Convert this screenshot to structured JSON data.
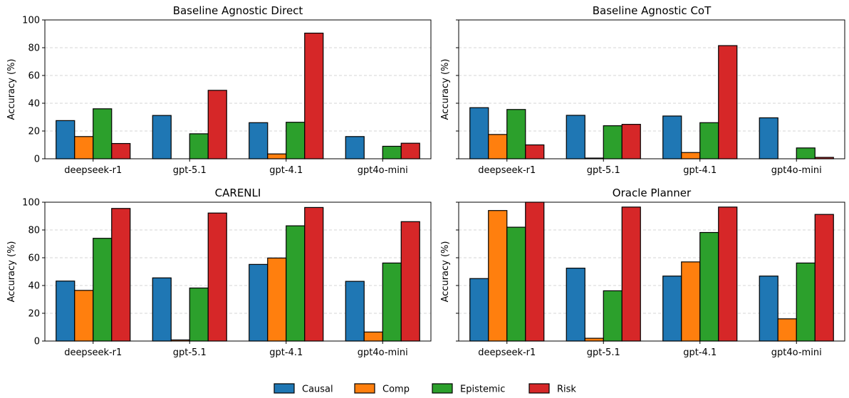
{
  "chart_data": [
    {
      "type": "bar",
      "title": "Baseline Agnostic Direct",
      "ylabel": "Accuracy (%)",
      "xlabel": "",
      "ylim": [
        0,
        100
      ],
      "yticks": [
        "0",
        "20",
        "40",
        "60",
        "80",
        "100"
      ],
      "show_ytick_labels": true,
      "grid": "y-dashed",
      "categories": [
        "deepseek-r1",
        "gpt-5.1",
        "gpt-4.1",
        "gpt4o-mini"
      ],
      "series": [
        {
          "name": "Causal",
          "values": [
            27.5,
            31.2,
            26.0,
            16.0
          ]
        },
        {
          "name": "Comp",
          "values": [
            16.0,
            0,
            3.5,
            0
          ]
        },
        {
          "name": "Epistemic",
          "values": [
            36.0,
            18.0,
            26.3,
            9.0
          ]
        },
        {
          "name": "Risk",
          "values": [
            11.0,
            49.3,
            90.5,
            11.2
          ]
        }
      ]
    },
    {
      "type": "bar",
      "title": "Baseline Agnostic CoT",
      "ylabel": "Accuracy (%)",
      "xlabel": "",
      "ylim": [
        0,
        100
      ],
      "yticks": [
        "0",
        "20",
        "40",
        "60",
        "80",
        "100"
      ],
      "show_ytick_labels": false,
      "grid": "y-dashed",
      "categories": [
        "deepseek-r1",
        "gpt-5.1",
        "gpt-4.1",
        "gpt4o-mini"
      ],
      "series": [
        {
          "name": "Causal",
          "values": [
            36.8,
            31.3,
            30.8,
            29.5
          ]
        },
        {
          "name": "Comp",
          "values": [
            17.5,
            0.5,
            4.5,
            0
          ]
        },
        {
          "name": "Epistemic",
          "values": [
            35.5,
            23.8,
            26.0,
            7.8
          ]
        },
        {
          "name": "Risk",
          "values": [
            10.0,
            24.8,
            81.5,
            1.0
          ]
        }
      ]
    },
    {
      "type": "bar",
      "title": "CARENLI",
      "ylabel": "Accuracy (%)",
      "xlabel": "",
      "ylim": [
        0,
        100
      ],
      "yticks": [
        "0",
        "20",
        "40",
        "60",
        "80",
        "100"
      ],
      "show_ytick_labels": true,
      "grid": "y-dashed",
      "categories": [
        "deepseek-r1",
        "gpt-5.1",
        "gpt-4.1",
        "gpt4o-mini"
      ],
      "series": [
        {
          "name": "Causal",
          "values": [
            43.2,
            45.5,
            55.2,
            43.0
          ]
        },
        {
          "name": "Comp",
          "values": [
            36.5,
            0.8,
            59.8,
            6.5
          ]
        },
        {
          "name": "Epistemic",
          "values": [
            74.0,
            38.2,
            83.0,
            56.2
          ]
        },
        {
          "name": "Risk",
          "values": [
            95.5,
            92.2,
            96.2,
            86.0
          ]
        }
      ]
    },
    {
      "type": "bar",
      "title": "Oracle Planner",
      "ylabel": "Accuracy (%)",
      "xlabel": "",
      "ylim": [
        0,
        100
      ],
      "yticks": [
        "0",
        "20",
        "40",
        "60",
        "80",
        "100"
      ],
      "show_ytick_labels": false,
      "grid": "y-dashed",
      "categories": [
        "deepseek-r1",
        "gpt-5.1",
        "gpt-4.1",
        "gpt4o-mini"
      ],
      "series": [
        {
          "name": "Causal",
          "values": [
            45.0,
            52.5,
            46.8,
            46.8
          ]
        },
        {
          "name": "Comp",
          "values": [
            94.0,
            2.0,
            57.0,
            16.0
          ]
        },
        {
          "name": "Epistemic",
          "values": [
            82.0,
            36.2,
            78.2,
            56.2
          ]
        },
        {
          "name": "Risk",
          "values": [
            100.0,
            96.5,
            96.5,
            91.2
          ]
        }
      ]
    }
  ],
  "legend": {
    "placement": "bottom-center",
    "items": [
      {
        "label": "Causal",
        "color": "#1f77b4"
      },
      {
        "label": "Comp",
        "color": "#ff7f0e"
      },
      {
        "label": "Epistemic",
        "color": "#2ca02c"
      },
      {
        "label": "Risk",
        "color": "#d62728"
      }
    ]
  }
}
